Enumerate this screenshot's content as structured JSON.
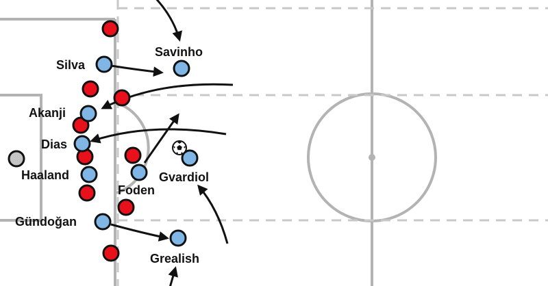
{
  "colors": {
    "pitch_line": "#b3b3b3",
    "pitch_line_dashed": "#c8c8c8",
    "team_home": "#7fb6e6",
    "team_away": "#e8101a",
    "goalkeeper": "#c4c4c4",
    "outline": "#111111",
    "arrow": "#111111"
  },
  "players": {
    "silva": "Silva",
    "savinho": "Savinho",
    "akanji": "Akanji",
    "dias": "Dias",
    "haaland": "Haaland",
    "foden": "Foden",
    "gvardiol": "Gvardiol",
    "gundogan": "Gündoğan",
    "grealish": "Grealish"
  },
  "icons": {
    "ball": "football-icon",
    "movement": "arrow-icon"
  }
}
